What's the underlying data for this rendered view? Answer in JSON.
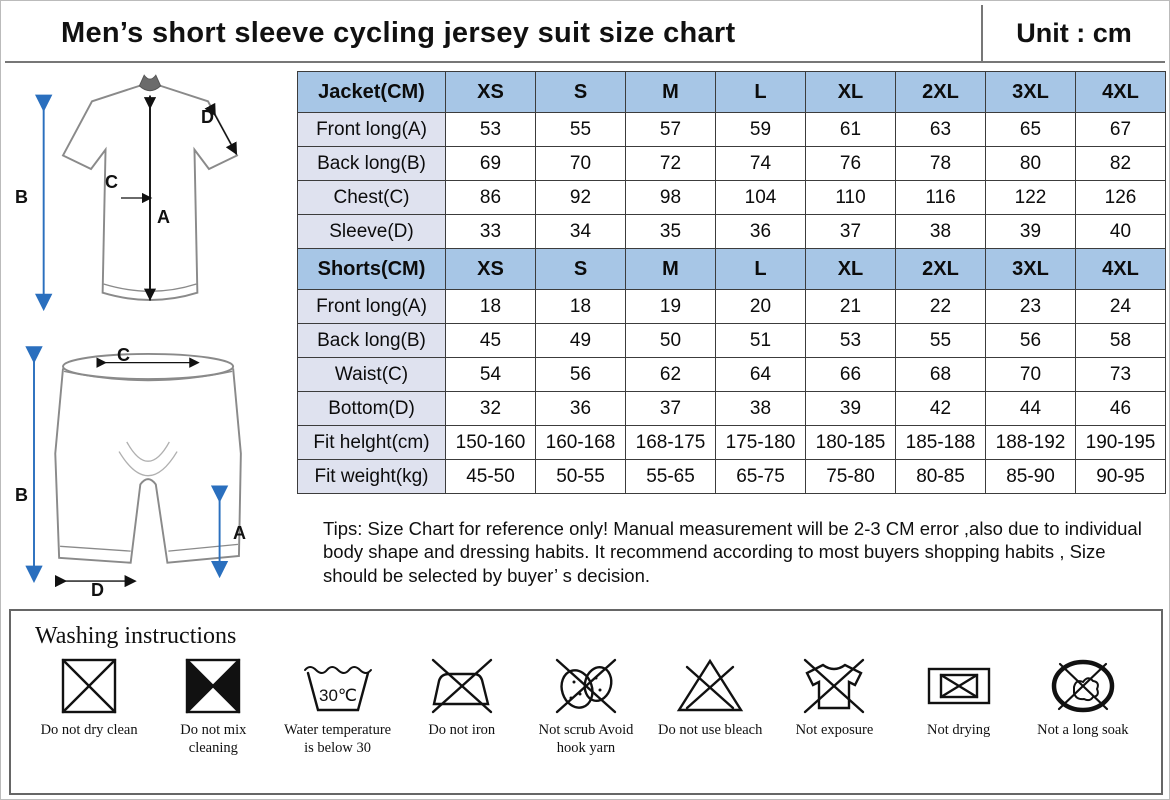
{
  "header": {
    "title": "Men’s short sleeve cycling jersey suit size chart",
    "unit": "Unit : cm"
  },
  "chart_data": {
    "type": "table",
    "title": "Men’s short sleeve cycling jersey suit size chart",
    "unit": "cm",
    "size_columns": [
      "XS",
      "S",
      "M",
      "L",
      "XL",
      "2XL",
      "3XL",
      "4XL"
    ],
    "rows": [
      {
        "type": "header",
        "label": "Jacket(CM)",
        "values": [
          "XS",
          "S",
          "M",
          "L",
          "XL",
          "2XL",
          "3XL",
          "4XL"
        ]
      },
      {
        "type": "data",
        "label": "Front long(A)",
        "values": [
          "53",
          "55",
          "57",
          "59",
          "61",
          "63",
          "65",
          "67"
        ]
      },
      {
        "type": "data",
        "label": "Back long(B)",
        "values": [
          "69",
          "70",
          "72",
          "74",
          "76",
          "78",
          "80",
          "82"
        ]
      },
      {
        "type": "data",
        "label": "Chest(C)",
        "values": [
          "86",
          "92",
          "98",
          "104",
          "110",
          "116",
          "122",
          "126"
        ]
      },
      {
        "type": "data",
        "label": "Sleeve(D)",
        "values": [
          "33",
          "34",
          "35",
          "36",
          "37",
          "38",
          "39",
          "40"
        ]
      },
      {
        "type": "header",
        "label": "Shorts(CM)",
        "values": [
          "XS",
          "S",
          "M",
          "L",
          "XL",
          "2XL",
          "3XL",
          "4XL"
        ]
      },
      {
        "type": "data",
        "label": "Front long(A)",
        "values": [
          "18",
          "18",
          "19",
          "20",
          "21",
          "22",
          "23",
          "24"
        ]
      },
      {
        "type": "data",
        "label": "Back long(B)",
        "values": [
          "45",
          "49",
          "50",
          "51",
          "53",
          "55",
          "56",
          "58"
        ]
      },
      {
        "type": "data",
        "label": "Waist(C)",
        "values": [
          "54",
          "56",
          "62",
          "64",
          "66",
          "68",
          "70",
          "73"
        ]
      },
      {
        "type": "data",
        "label": "Bottom(D)",
        "values": [
          "32",
          "36",
          "37",
          "38",
          "39",
          "42",
          "44",
          "46"
        ]
      },
      {
        "type": "data",
        "label": "Fit helght(cm)",
        "values": [
          "150-160",
          "160-168",
          "168-175",
          "175-180",
          "180-185",
          "185-188",
          "188-192",
          "190-195"
        ]
      },
      {
        "type": "data",
        "label": "Fit weight(kg)",
        "values": [
          "45-50",
          "50-55",
          "55-65",
          "65-75",
          "75-80",
          "80-85",
          "85-90",
          "90-95"
        ]
      }
    ]
  },
  "tips": "Tips: Size Chart for reference only! Manual measurement will be 2-3 CM error ,also due to individual body shape and dressing habits. It recommend according to most buyers shopping habits , Size should be selected by  buyer’ s decision.",
  "diagrams": {
    "jersey": {
      "labels": {
        "a": "A",
        "b": "B",
        "c": "C",
        "d": "D"
      }
    },
    "shorts": {
      "labels": {
        "a": "A",
        "b": "B",
        "c": "C",
        "d": "D"
      }
    }
  },
  "washing": {
    "title": "Washing instructions",
    "items": [
      {
        "icon": "do-not-dry-clean-icon",
        "label": "Do not dry clean"
      },
      {
        "icon": "do-not-mix-cleaning-icon",
        "label": "Do not mix cleaning"
      },
      {
        "icon": "water-temperature-icon",
        "label": "Water temperature is below 30",
        "temp": "30℃"
      },
      {
        "icon": "do-not-iron-icon",
        "label": "Do not iron"
      },
      {
        "icon": "not-scrub-icon",
        "label": "Not scrub Avoid hook yarn"
      },
      {
        "icon": "do-not-bleach-icon",
        "label": "Do not use bleach"
      },
      {
        "icon": "not-exposure-icon",
        "label": "Not exposure"
      },
      {
        "icon": "not-drying-icon",
        "label": "Not drying"
      },
      {
        "icon": "not-long-soak-icon",
        "label": "Not a long soak"
      }
    ]
  }
}
